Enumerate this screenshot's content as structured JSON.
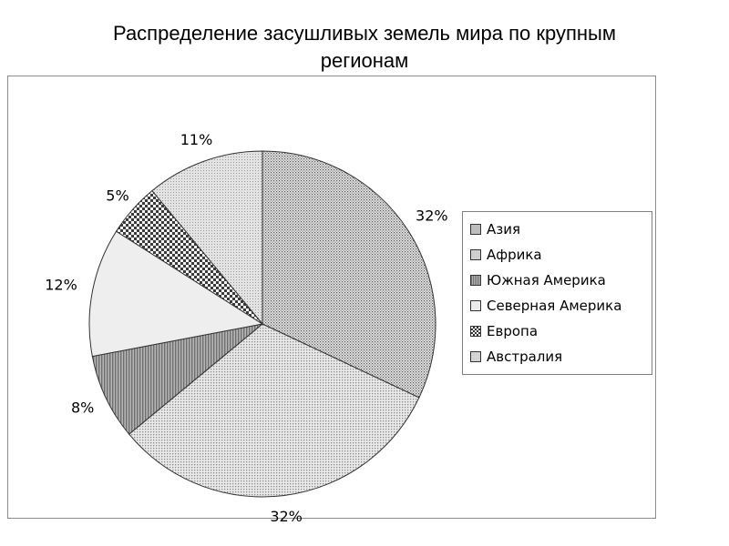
{
  "title": {
    "line1": "Распределение засушливых земель мира по крупным",
    "line2": "регионам"
  },
  "chart_data": {
    "type": "pie",
    "categories": [
      "Азия",
      "Африка",
      "Южная Америка",
      "Северная Америка",
      "Европа",
      "Австралия"
    ],
    "values": [
      32,
      32,
      8,
      12,
      5,
      11
    ],
    "data_labels": [
      "32%",
      "32%",
      "8%",
      "12%",
      "5%",
      "11%"
    ],
    "legend_position": "right",
    "colors": [
      "#bdbdbd",
      "#cfcfcf",
      "#8f8f8f",
      "#ececec",
      "#d9d9d9",
      "#d4d4d4"
    ],
    "patterns": [
      "dense-dots",
      "light-dots",
      "vertical-stripes",
      "plain",
      "checker",
      "fine-dots"
    ]
  }
}
